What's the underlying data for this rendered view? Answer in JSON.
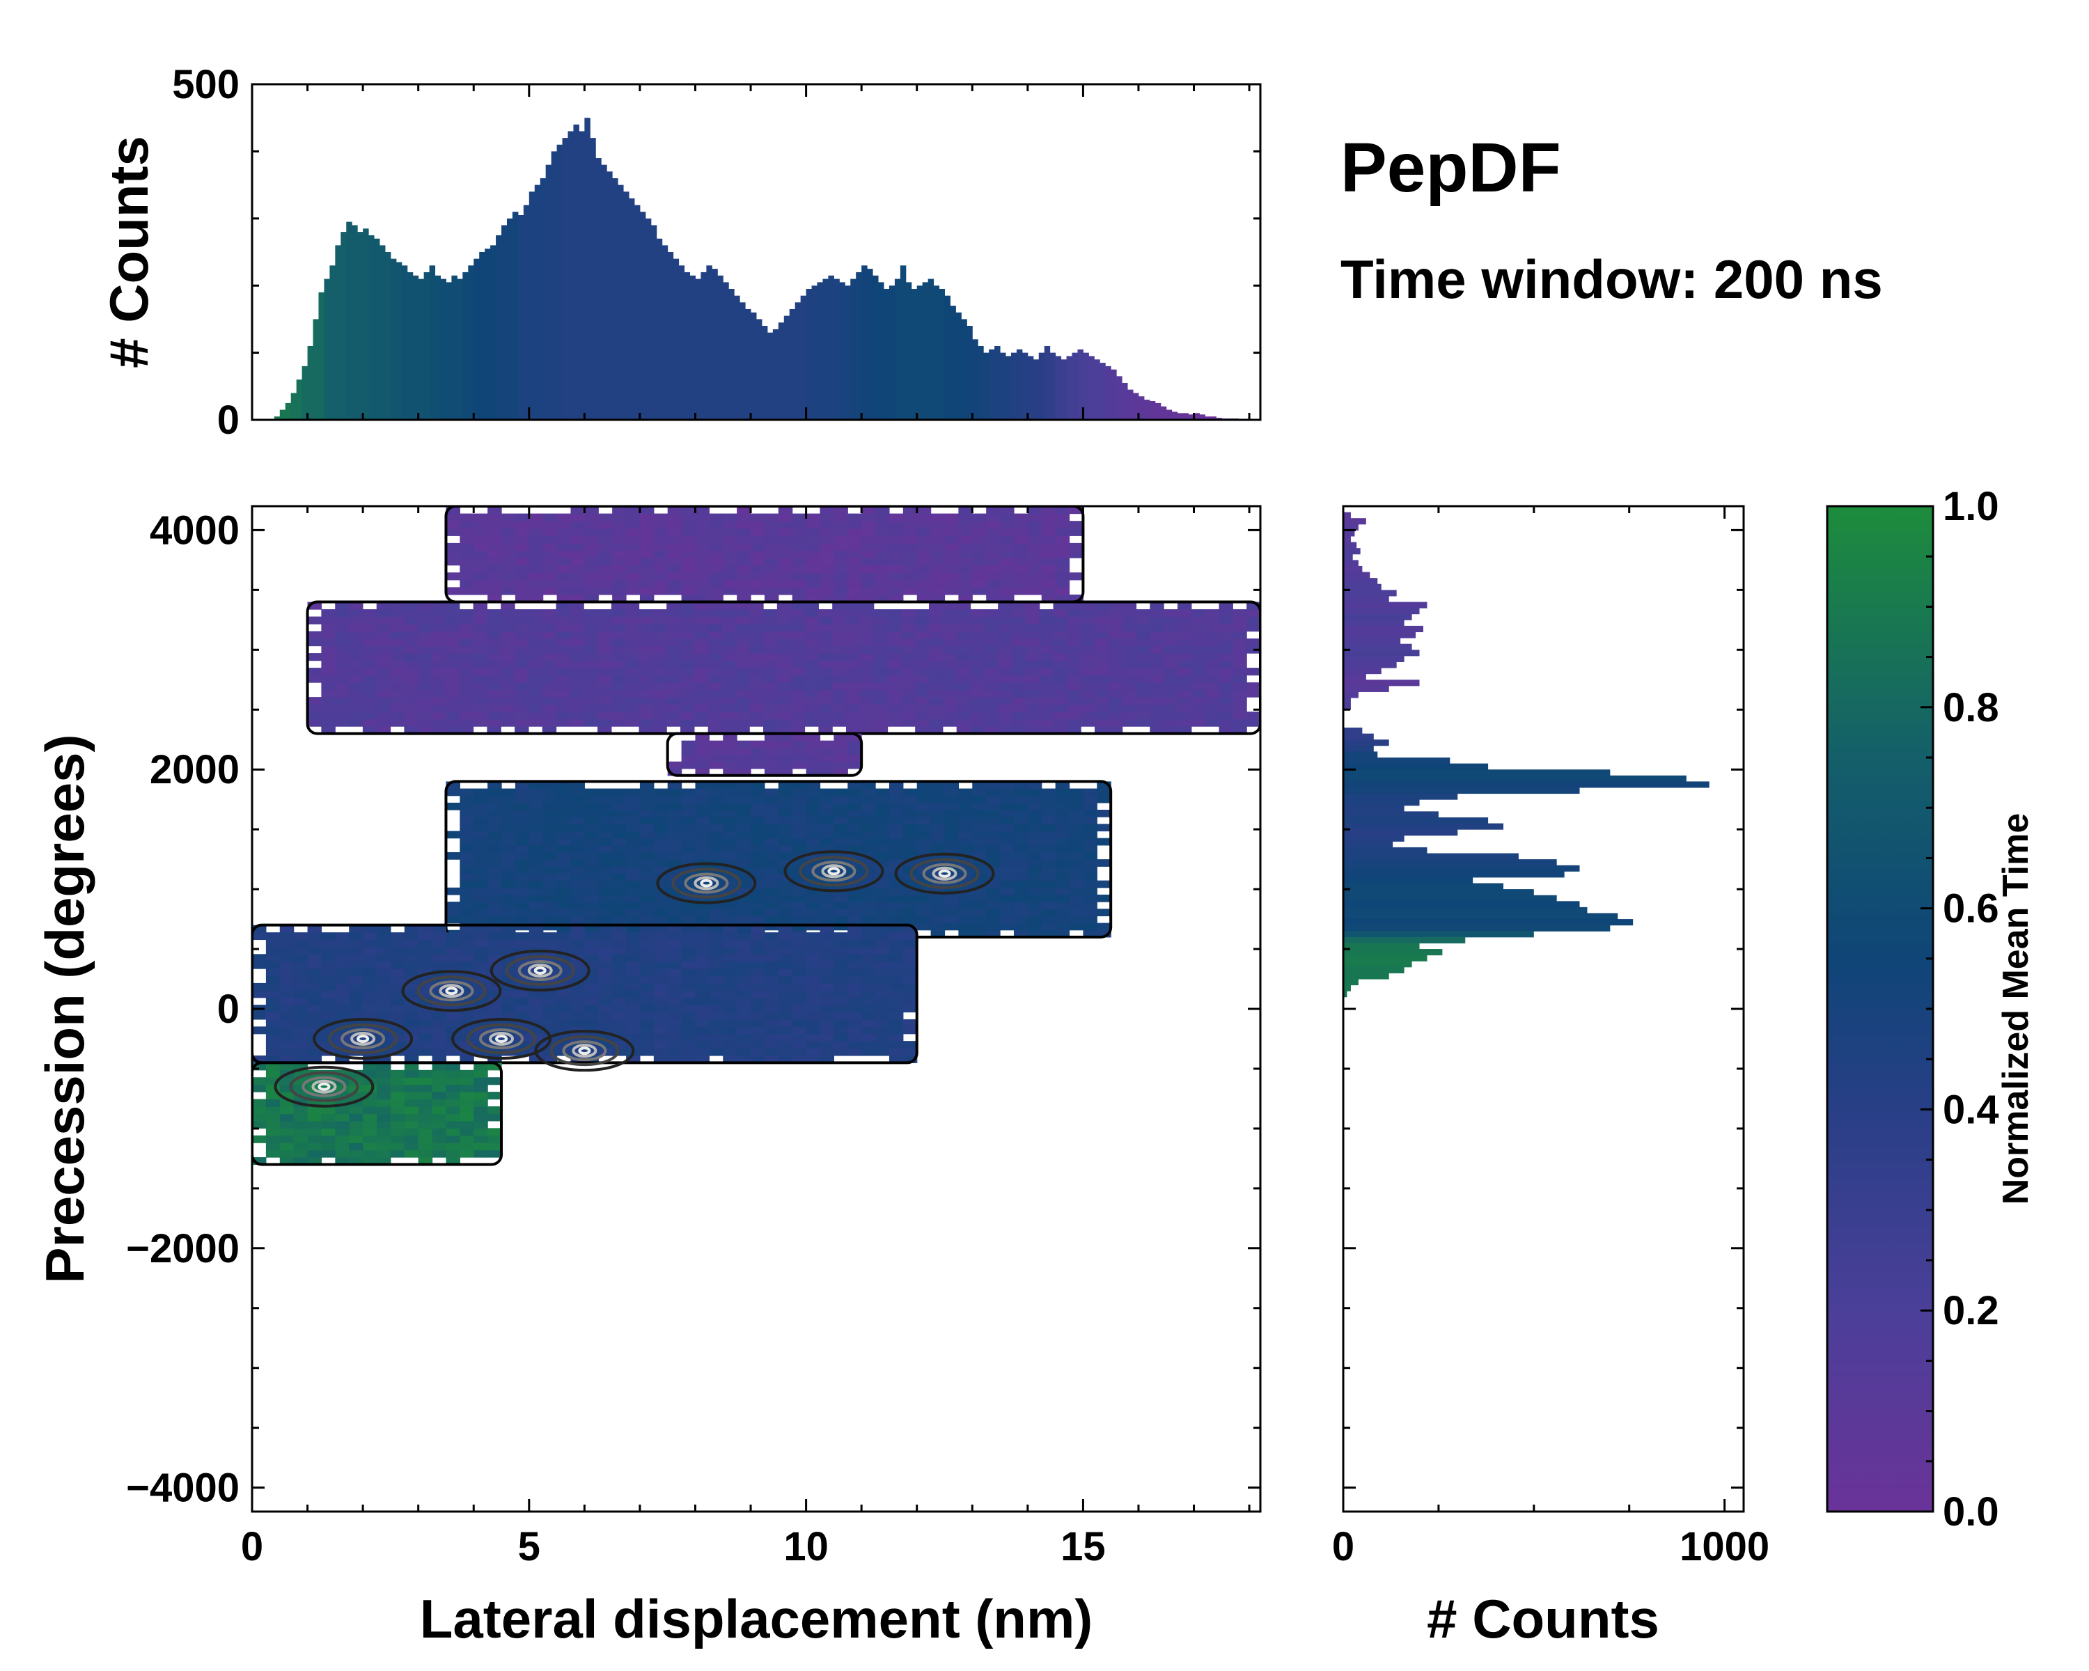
{
  "chart_data": {
    "type": "heatmap",
    "title": "PepDF",
    "subtitle": "Time window: 200 ns",
    "main": {
      "xlabel": "Lateral displacement (nm)",
      "ylabel": "Precession (degrees)",
      "xlim": [
        0,
        18.2
      ],
      "ylim": [
        -4200,
        4200
      ],
      "xticks": [
        0,
        5,
        10,
        15
      ],
      "xtick_labels": [
        "0",
        "5",
        "10",
        "15"
      ],
      "yticks": [
        -4000,
        -2000,
        0,
        2000,
        4000
      ],
      "ytick_labels": [
        "−4000",
        "−2000",
        "0",
        "2000",
        "4000"
      ],
      "regions": [
        {
          "name": "upper band",
          "x": [
            3.5,
            15
          ],
          "y": [
            3400,
            4200
          ],
          "t": 0.1
        },
        {
          "name": "middle band",
          "x": [
            1,
            18.2
          ],
          "y": [
            2300,
            3400
          ],
          "t": 0.15
        },
        {
          "name": "small patch",
          "x": [
            7.5,
            11
          ],
          "y": [
            1950,
            2300
          ],
          "t": 0.12
        },
        {
          "name": "diagonal band",
          "x": [
            3.5,
            15.5
          ],
          "y": [
            600,
            1900
          ],
          "t": 0.55
        },
        {
          "name": "lower band",
          "x": [
            0,
            12
          ],
          "y": [
            -450,
            700
          ],
          "t": 0.45
        },
        {
          "name": "bottom left",
          "x": [
            0,
            4.5
          ],
          "y": [
            -1300,
            -450
          ],
          "t": 0.9
        }
      ],
      "density_peaks": [
        {
          "x": 3.6,
          "y": 150
        },
        {
          "x": 5.2,
          "y": 320
        },
        {
          "x": 4.5,
          "y": -250
        },
        {
          "x": 6.0,
          "y": -350
        },
        {
          "x": 1.3,
          "y": -650
        },
        {
          "x": 2.0,
          "y": -250
        },
        {
          "x": 10.5,
          "y": 1150
        },
        {
          "x": 12.5,
          "y": 1130
        },
        {
          "x": 8.2,
          "y": 1050
        }
      ]
    },
    "top_hist": {
      "ylabel": "# Counts",
      "ylim": [
        0,
        500
      ],
      "yticks": [
        0,
        500
      ],
      "ytick_labels": [
        "0",
        "500"
      ],
      "bin_width": 0.1,
      "x_start": 0,
      "values": [
        0,
        0,
        0,
        0,
        5,
        15,
        25,
        40,
        60,
        80,
        110,
        150,
        190,
        210,
        230,
        260,
        280,
        295,
        290,
        280,
        285,
        275,
        270,
        260,
        250,
        240,
        235,
        230,
        220,
        215,
        210,
        220,
        230,
        215,
        210,
        205,
        215,
        210,
        220,
        230,
        240,
        250,
        255,
        260,
        275,
        290,
        300,
        310,
        305,
        320,
        340,
        350,
        360,
        380,
        400,
        410,
        420,
        430,
        440,
        430,
        450,
        420,
        390,
        380,
        370,
        360,
        350,
        340,
        330,
        320,
        310,
        300,
        290,
        270,
        260,
        250,
        240,
        230,
        220,
        215,
        210,
        220,
        230,
        225,
        215,
        205,
        195,
        185,
        175,
        165,
        160,
        150,
        140,
        130,
        135,
        145,
        155,
        165,
        175,
        185,
        195,
        200,
        205,
        210,
        215,
        210,
        205,
        200,
        210,
        220,
        230,
        225,
        215,
        205,
        195,
        200,
        210,
        230,
        205,
        195,
        200,
        205,
        210,
        200,
        195,
        185,
        170,
        160,
        150,
        140,
        120,
        110,
        100,
        105,
        110,
        100,
        95,
        100,
        105,
        100,
        95,
        90,
        100,
        110,
        100,
        95,
        90,
        95,
        100,
        105,
        100,
        95,
        90,
        85,
        80,
        75,
        65,
        55,
        45,
        40,
        35,
        30,
        28,
        25,
        20,
        15,
        12,
        10,
        10,
        8,
        10,
        8,
        5,
        5,
        3,
        2,
        2,
        2,
        0,
        0,
        0,
        0
      ],
      "color_t": [
        0.95,
        0.9,
        0.9,
        0.88,
        0.85,
        0.85,
        0.8,
        0.8,
        0.78,
        0.78,
        0.75,
        0.75,
        0.72,
        0.7,
        0.7,
        0.68,
        0.65,
        0.65,
        0.62,
        0.6,
        0.6,
        0.55,
        0.55,
        0.5,
        0.5,
        0.5,
        0.48,
        0.45,
        0.45,
        0.45,
        0.45,
        0.45,
        0.45,
        0.45,
        0.45,
        0.45,
        0.45,
        0.45,
        0.45,
        0.45,
        0.45,
        0.45,
        0.45,
        0.45,
        0.45,
        0.45,
        0.45,
        0.45,
        0.48,
        0.5,
        0.5,
        0.52,
        0.55,
        0.58,
        0.6,
        0.6,
        0.62,
        0.62,
        0.62,
        0.62,
        0.6,
        0.6,
        0.58,
        0.55,
        0.5,
        0.48,
        0.45,
        0.42,
        0.4,
        0.35,
        0.3,
        0.25,
        0.22,
        0.2,
        0.15,
        0.12,
        0.1,
        0.08,
        0.05,
        0.05,
        0.03,
        0.02,
        0.02,
        0,
        0,
        0,
        0,
        0
      ]
    },
    "right_hist": {
      "xlabel": "# Counts",
      "xlim": [
        0,
        1050
      ],
      "xticks": [
        0,
        1000
      ],
      "xtick_labels": [
        "0",
        "1000"
      ],
      "bin_width": 50,
      "y_start": 4200,
      "values": [
        0,
        20,
        60,
        40,
        30,
        20,
        35,
        45,
        25,
        40,
        50,
        70,
        90,
        100,
        140,
        120,
        220,
        200,
        180,
        160,
        210,
        190,
        150,
        180,
        200,
        160,
        140,
        100,
        60,
        200,
        120,
        40,
        20,
        20,
        0,
        0,
        0,
        50,
        80,
        120,
        80,
        90,
        280,
        380,
        700,
        900,
        960,
        620,
        300,
        200,
        160,
        250,
        380,
        420,
        300,
        160,
        130,
        220,
        460,
        560,
        620,
        580,
        340,
        420,
        500,
        560,
        620,
        640,
        720,
        760,
        700,
        500,
        320,
        200,
        260,
        220,
        180,
        160,
        120,
        40,
        20,
        10,
        0,
        0,
        0,
        0,
        0,
        0,
        0,
        0,
        0,
        0,
        0,
        0,
        0,
        0,
        0,
        0,
        0,
        0,
        0,
        0,
        0,
        0,
        0,
        0,
        0,
        0,
        0,
        0,
        0,
        0,
        0,
        0,
        0,
        0,
        0,
        0,
        0,
        0,
        0,
        0,
        0,
        0,
        0,
        0,
        0,
        0,
        0,
        0,
        0,
        0,
        0,
        0,
        0,
        0,
        0,
        0,
        0,
        0,
        0,
        0,
        0,
        0,
        0,
        0,
        0,
        0,
        0,
        0,
        0,
        0,
        0,
        0,
        0,
        0,
        0,
        0,
        0,
        0,
        0,
        0,
        0,
        0,
        0,
        0,
        0,
        0,
        0,
        0
      ],
      "color_t": [
        0.12,
        0.12,
        0.1,
        0.12,
        0.15,
        0.12,
        0.15,
        0.18,
        0.2,
        0.15,
        0.12,
        0.15,
        0.18,
        0.2,
        0.2,
        0.18,
        0.15,
        0.18,
        0.22,
        0.2,
        0.15,
        0.15,
        0.18,
        0.2,
        0.22,
        0.2,
        0.18,
        0.15,
        0.12,
        0.1,
        0.12,
        0.15,
        0.2,
        0.2,
        0.2,
        0.2,
        0.3,
        0.35,
        0.35,
        0.4,
        0.45,
        0.55,
        0.55,
        0.6,
        0.62,
        0.62,
        0.58,
        0.55,
        0.5,
        0.48,
        0.45,
        0.45,
        0.5,
        0.45,
        0.4,
        0.42,
        0.45,
        0.48,
        0.5,
        0.52,
        0.55,
        0.58,
        0.6,
        0.62,
        0.62,
        0.62,
        0.6,
        0.62,
        0.62,
        0.6,
        0.62,
        0.72,
        0.85,
        0.9,
        0.9,
        0.92,
        0.92,
        0.9,
        0.9,
        0.9,
        0.9,
        0.9
      ]
    },
    "colorbar": {
      "label": "Normalized Mean Time",
      "range": [
        0.0,
        1.0
      ],
      "ticks": [
        0.0,
        0.2,
        0.4,
        0.6,
        0.8,
        1.0
      ],
      "tick_labels": [
        "0.0",
        "0.2",
        "0.4",
        "0.6",
        "0.8",
        "1.0"
      ],
      "colors": [
        "#6a3399",
        "#4b3f99",
        "#283f86",
        "#0f4577",
        "#145f6a",
        "#1d8c3c"
      ]
    }
  }
}
